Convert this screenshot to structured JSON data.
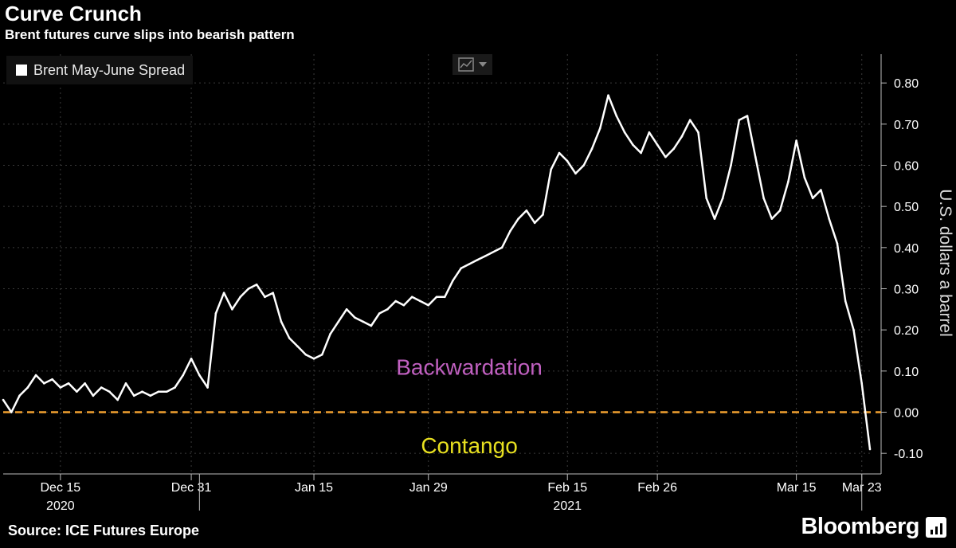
{
  "header": {
    "title": "Curve Crunch",
    "subtitle": "Brent futures curve slips into bearish pattern"
  },
  "footer": {
    "source": "Source: ICE Futures Europe",
    "brand": "Bloomberg"
  },
  "colors": {
    "background": "#000000",
    "series": "#ffffff",
    "zero_line": "#f0a030",
    "backwardation": "#c060c0",
    "contango": "#e8e020"
  },
  "chart_data": {
    "type": "line",
    "title": "Curve Crunch",
    "subtitle": "Brent futures curve slips into bearish pattern",
    "xlabel": "",
    "ylabel": "U.S. dollars a barrel",
    "ylim": [
      -0.15,
      0.87
    ],
    "yticks": [
      {
        "value": 0.8,
        "label": "0.80"
      },
      {
        "value": 0.7,
        "label": "0.70"
      },
      {
        "value": 0.6,
        "label": "0.60"
      },
      {
        "value": 0.5,
        "label": "0.50"
      },
      {
        "value": 0.4,
        "label": "0.40"
      },
      {
        "value": 0.3,
        "label": "0.30"
      },
      {
        "value": 0.2,
        "label": "0.20"
      },
      {
        "value": 0.1,
        "label": "0.10"
      },
      {
        "value": 0.0,
        "label": "0.00"
      },
      {
        "value": -0.1,
        "label": "-0.10"
      }
    ],
    "xlim": [
      "2020-12-08",
      "2021-03-24"
    ],
    "xticks": [
      {
        "date": "2020-12-15",
        "label": "Dec 15"
      },
      {
        "date": "2020-12-31",
        "label": "Dec 31"
      },
      {
        "date": "2021-01-15",
        "label": "Jan 15"
      },
      {
        "date": "2021-01-29",
        "label": "Jan 29"
      },
      {
        "date": "2021-02-15",
        "label": "Feb 15"
      },
      {
        "date": "2021-02-26",
        "label": "Feb 26"
      },
      {
        "date": "2021-03-15",
        "label": "Mar 15"
      },
      {
        "date": "2021-03-23",
        "label": "Mar 23"
      }
    ],
    "year_labels": [
      {
        "date": "2020-12-15",
        "label": "2020"
      },
      {
        "date": "2021-02-15",
        "label": "2021"
      }
    ],
    "year_separators": [
      "2021-01-01",
      "2021-03-23"
    ],
    "grid": true,
    "legend_position": "top-left",
    "reference_line": {
      "value": 0.0,
      "style": "dashed"
    },
    "annotations": [
      {
        "text": "Backwardation",
        "date": "2021-02-03",
        "value": 0.11
      },
      {
        "text": "Contango",
        "date": "2021-02-03",
        "value": -0.08
      }
    ],
    "series": [
      {
        "name": "Brent May-June Spread",
        "points": [
          [
            "2020-12-08",
            0.03
          ],
          [
            "2020-12-09",
            0.0
          ],
          [
            "2020-12-10",
            0.04
          ],
          [
            "2020-12-11",
            0.06
          ],
          [
            "2020-12-12",
            0.09
          ],
          [
            "2020-12-13",
            0.07
          ],
          [
            "2020-12-14",
            0.08
          ],
          [
            "2020-12-15",
            0.06
          ],
          [
            "2020-12-16",
            0.07
          ],
          [
            "2020-12-17",
            0.05
          ],
          [
            "2020-12-18",
            0.07
          ],
          [
            "2020-12-19",
            0.04
          ],
          [
            "2020-12-20",
            0.06
          ],
          [
            "2020-12-21",
            0.05
          ],
          [
            "2020-12-22",
            0.03
          ],
          [
            "2020-12-23",
            0.07
          ],
          [
            "2020-12-24",
            0.04
          ],
          [
            "2020-12-25",
            0.05
          ],
          [
            "2020-12-26",
            0.04
          ],
          [
            "2020-12-27",
            0.05
          ],
          [
            "2020-12-28",
            0.05
          ],
          [
            "2020-12-29",
            0.06
          ],
          [
            "2020-12-30",
            0.09
          ],
          [
            "2020-12-31",
            0.13
          ],
          [
            "2021-01-01",
            0.09
          ],
          [
            "2021-01-02",
            0.06
          ],
          [
            "2021-01-03",
            0.24
          ],
          [
            "2021-01-04",
            0.29
          ],
          [
            "2021-01-05",
            0.25
          ],
          [
            "2021-01-06",
            0.28
          ],
          [
            "2021-01-07",
            0.3
          ],
          [
            "2021-01-08",
            0.31
          ],
          [
            "2021-01-09",
            0.28
          ],
          [
            "2021-01-10",
            0.29
          ],
          [
            "2021-01-11",
            0.22
          ],
          [
            "2021-01-12",
            0.18
          ],
          [
            "2021-01-13",
            0.16
          ],
          [
            "2021-01-14",
            0.14
          ],
          [
            "2021-01-15",
            0.13
          ],
          [
            "2021-01-16",
            0.14
          ],
          [
            "2021-01-17",
            0.19
          ],
          [
            "2021-01-18",
            0.22
          ],
          [
            "2021-01-19",
            0.25
          ],
          [
            "2021-01-20",
            0.23
          ],
          [
            "2021-01-21",
            0.22
          ],
          [
            "2021-01-22",
            0.21
          ],
          [
            "2021-01-23",
            0.24
          ],
          [
            "2021-01-24",
            0.25
          ],
          [
            "2021-01-25",
            0.27
          ],
          [
            "2021-01-26",
            0.26
          ],
          [
            "2021-01-27",
            0.28
          ],
          [
            "2021-01-28",
            0.27
          ],
          [
            "2021-01-29",
            0.26
          ],
          [
            "2021-01-30",
            0.28
          ],
          [
            "2021-01-31",
            0.28
          ],
          [
            "2021-02-01",
            0.32
          ],
          [
            "2021-02-02",
            0.35
          ],
          [
            "2021-02-03",
            0.36
          ],
          [
            "2021-02-04",
            0.37
          ],
          [
            "2021-02-05",
            0.38
          ],
          [
            "2021-02-07",
            0.4
          ],
          [
            "2021-02-08",
            0.44
          ],
          [
            "2021-02-09",
            0.47
          ],
          [
            "2021-02-10",
            0.49
          ],
          [
            "2021-02-11",
            0.46
          ],
          [
            "2021-02-12",
            0.48
          ],
          [
            "2021-02-13",
            0.59
          ],
          [
            "2021-02-14",
            0.63
          ],
          [
            "2021-02-15",
            0.61
          ],
          [
            "2021-02-16",
            0.58
          ],
          [
            "2021-02-17",
            0.6
          ],
          [
            "2021-02-18",
            0.64
          ],
          [
            "2021-02-19",
            0.69
          ],
          [
            "2021-02-20",
            0.77
          ],
          [
            "2021-02-21",
            0.72
          ],
          [
            "2021-02-22",
            0.68
          ],
          [
            "2021-02-23",
            0.65
          ],
          [
            "2021-02-24",
            0.63
          ],
          [
            "2021-02-25",
            0.68
          ],
          [
            "2021-02-26",
            0.65
          ],
          [
            "2021-02-27",
            0.62
          ],
          [
            "2021-02-28",
            0.64
          ],
          [
            "2021-03-01",
            0.67
          ],
          [
            "2021-03-02",
            0.71
          ],
          [
            "2021-03-03",
            0.68
          ],
          [
            "2021-03-04",
            0.52
          ],
          [
            "2021-03-05",
            0.47
          ],
          [
            "2021-03-06",
            0.52
          ],
          [
            "2021-03-07",
            0.6
          ],
          [
            "2021-03-08",
            0.71
          ],
          [
            "2021-03-09",
            0.72
          ],
          [
            "2021-03-10",
            0.62
          ],
          [
            "2021-03-11",
            0.52
          ],
          [
            "2021-03-12",
            0.47
          ],
          [
            "2021-03-13",
            0.49
          ],
          [
            "2021-03-14",
            0.56
          ],
          [
            "2021-03-15",
            0.66
          ],
          [
            "2021-03-16",
            0.57
          ],
          [
            "2021-03-17",
            0.52
          ],
          [
            "2021-03-18",
            0.54
          ],
          [
            "2021-03-19",
            0.47
          ],
          [
            "2021-03-20",
            0.41
          ],
          [
            "2021-03-21",
            0.27
          ],
          [
            "2021-03-22",
            0.2
          ],
          [
            "2021-03-23",
            0.07
          ],
          [
            "2021-03-24",
            -0.09
          ]
        ]
      }
    ]
  }
}
